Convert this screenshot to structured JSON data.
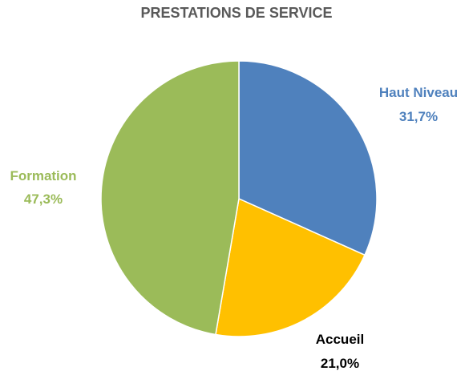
{
  "chart_data": {
    "type": "pie",
    "title": "PRESTATIONS DE SERVICE",
    "slices": [
      {
        "label": "Haut Niveau",
        "value": 31.7,
        "display_value": "31,7%",
        "color": "#4f81bd",
        "label_color": "#4f81bd"
      },
      {
        "label": "Accueil",
        "value": 21.0,
        "display_value": "21,0%",
        "color": "#ffc000",
        "label_color": "#000000"
      },
      {
        "label": "Formation",
        "value": 47.3,
        "display_value": "47,3%",
        "color": "#9bbb59",
        "label_color": "#9bbb59"
      }
    ],
    "start_angle": "top",
    "direction": "clockwise",
    "legend": "none"
  }
}
